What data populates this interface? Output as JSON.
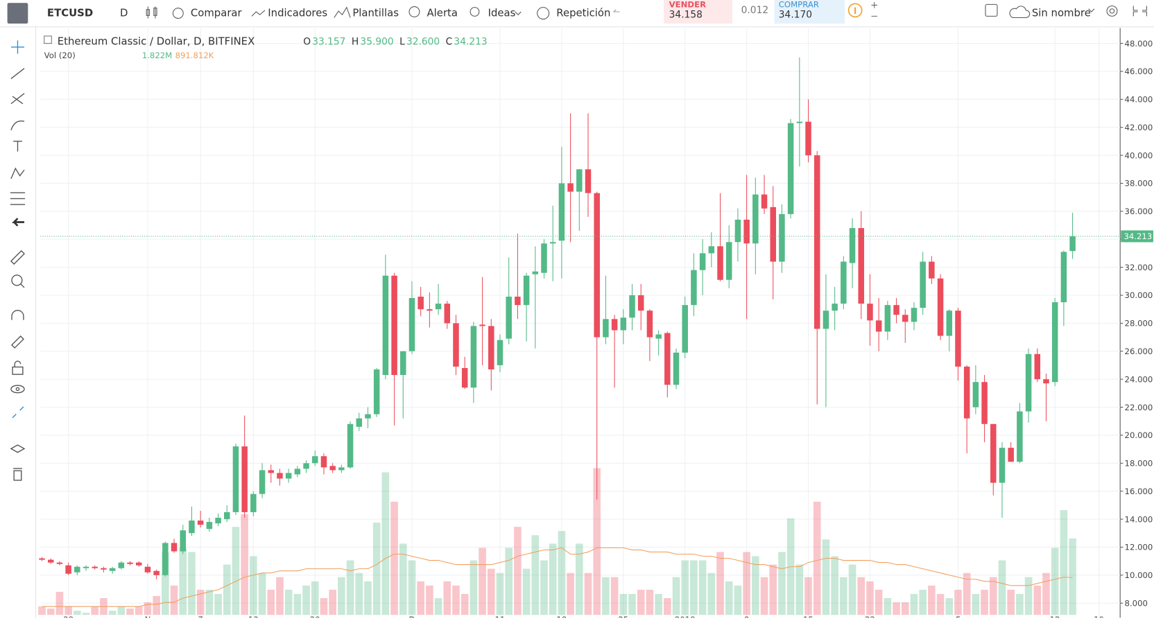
{
  "toolbar": {
    "symbol": "ETCUSD",
    "interval": "D",
    "items": [
      "Comparar",
      "Indicadores",
      "Plantillas",
      "Alerta",
      "Ideas",
      "Repetición"
    ],
    "sell_label": "VENDER",
    "sell_price": "34.158",
    "spread": "0.012",
    "buy_label": "COMPRAR",
    "buy_price": "34.170",
    "layout": "Sin nombre"
  },
  "chart_data": {
    "type": "candlestick",
    "title": "Ethereum Classic / Dollar, D, BITFINEX",
    "ohlc_legend": [
      {
        "key": "O",
        "value": "33.157"
      },
      {
        "key": "H",
        "value": "35.900"
      },
      {
        "key": "L",
        "value": "32.600"
      },
      {
        "key": "C",
        "value": "34.213"
      }
    ],
    "volume_title": "Vol (20)",
    "volume_legend": [
      "1.822M",
      "891.812K"
    ],
    "up_color": "#53b987",
    "down_color": "#eb4d5c",
    "ma_color": "#f0a060",
    "ohlc": [
      [
        11.2,
        11.3,
        11.0,
        11.1
      ],
      [
        11.1,
        11.2,
        10.8,
        10.9
      ],
      [
        10.9,
        11.0,
        10.7,
        10.8
      ],
      [
        10.7,
        10.9,
        10.0,
        10.1
      ],
      [
        10.2,
        10.7,
        10.0,
        10.6
      ],
      [
        10.5,
        10.7,
        10.3,
        10.6
      ],
      [
        10.6,
        10.7,
        10.4,
        10.5
      ],
      [
        10.5,
        10.6,
        10.2,
        10.4
      ],
      [
        10.3,
        10.6,
        10.1,
        10.5
      ],
      [
        10.5,
        11.0,
        10.4,
        10.9
      ],
      [
        10.9,
        11.0,
        10.7,
        10.8
      ],
      [
        10.9,
        11.0,
        10.6,
        10.7
      ],
      [
        10.6,
        10.8,
        10.1,
        10.2
      ],
      [
        10.3,
        10.4,
        9.7,
        10.0
      ],
      [
        10.0,
        12.4,
        9.9,
        12.3
      ],
      [
        12.3,
        12.6,
        11.6,
        11.7
      ],
      [
        11.7,
        13.6,
        11.5,
        13.2
      ],
      [
        13.0,
        14.9,
        12.8,
        13.9
      ],
      [
        13.9,
        14.6,
        13.4,
        13.6
      ],
      [
        13.3,
        14.1,
        13.1,
        13.8
      ],
      [
        13.7,
        14.4,
        13.5,
        14.1
      ],
      [
        14.0,
        15.0,
        13.8,
        14.5
      ],
      [
        14.5,
        19.4,
        14.3,
        19.2
      ],
      [
        19.2,
        21.4,
        14.1,
        14.5
      ],
      [
        14.5,
        16.0,
        14.2,
        15.8
      ],
      [
        15.8,
        18.0,
        15.5,
        17.5
      ],
      [
        17.5,
        17.9,
        16.6,
        17.3
      ],
      [
        17.3,
        17.6,
        16.4,
        16.9
      ],
      [
        16.9,
        17.6,
        16.6,
        17.3
      ],
      [
        17.2,
        17.8,
        17.0,
        17.6
      ],
      [
        17.6,
        18.2,
        17.3,
        18.0
      ],
      [
        18.0,
        18.9,
        17.8,
        18.5
      ],
      [
        18.5,
        18.7,
        17.2,
        17.7
      ],
      [
        17.8,
        18.0,
        17.3,
        17.5
      ],
      [
        17.5,
        17.9,
        17.3,
        17.7
      ],
      [
        17.7,
        21.0,
        17.6,
        20.8
      ],
      [
        20.6,
        21.6,
        20.3,
        21.2
      ],
      [
        21.2,
        22.0,
        20.5,
        21.5
      ],
      [
        21.5,
        24.8,
        21.3,
        24.7
      ],
      [
        24.3,
        32.9,
        24.0,
        31.4
      ],
      [
        31.4,
        31.6,
        20.7,
        24.3
      ],
      [
        24.3,
        26.0,
        21.2,
        26.0
      ],
      [
        26.0,
        31.0,
        25.8,
        29.8
      ],
      [
        29.9,
        30.6,
        28.5,
        29.0
      ],
      [
        29.0,
        30.2,
        27.7,
        28.9
      ],
      [
        29.0,
        30.8,
        28.6,
        29.4
      ],
      [
        29.4,
        29.6,
        27.6,
        28.0
      ],
      [
        28.0,
        28.6,
        24.3,
        24.9
      ],
      [
        24.8,
        25.6,
        23.3,
        23.4
      ],
      [
        23.4,
        28.1,
        22.3,
        27.8
      ],
      [
        27.9,
        31.3,
        25.0,
        27.8
      ],
      [
        27.8,
        28.3,
        23.2,
        24.7
      ],
      [
        25.0,
        27.2,
        24.5,
        26.8
      ],
      [
        26.9,
        32.7,
        26.5,
        29.9
      ],
      [
        29.9,
        34.4,
        28.3,
        29.3
      ],
      [
        29.3,
        31.6,
        26.7,
        31.4
      ],
      [
        31.5,
        33.5,
        26.2,
        31.7
      ],
      [
        31.6,
        34.0,
        31.2,
        33.7
      ],
      [
        33.7,
        36.4,
        31.0,
        33.8
      ],
      [
        33.9,
        40.6,
        31.2,
        38.0
      ],
      [
        38.0,
        43.0,
        33.8,
        37.4
      ],
      [
        37.4,
        39.0,
        34.6,
        39.0
      ],
      [
        39.0,
        43.0,
        35.6,
        37.3
      ],
      [
        37.3,
        37.4,
        15.4,
        27.0
      ],
      [
        27.0,
        31.4,
        26.5,
        28.3
      ],
      [
        28.3,
        28.6,
        23.4,
        27.5
      ],
      [
        27.5,
        29.0,
        26.5,
        28.4
      ],
      [
        28.4,
        30.8,
        27.5,
        30.0
      ],
      [
        30.0,
        30.8,
        27.5,
        28.9
      ],
      [
        28.9,
        29.0,
        25.3,
        27.0
      ],
      [
        26.9,
        27.5,
        25.7,
        27.2
      ],
      [
        27.3,
        27.4,
        22.7,
        23.6
      ],
      [
        23.6,
        26.2,
        23.3,
        25.9
      ],
      [
        25.9,
        29.9,
        25.5,
        29.3
      ],
      [
        29.3,
        33.0,
        28.5,
        31.8
      ],
      [
        31.8,
        34.0,
        30.0,
        33.0
      ],
      [
        33.0,
        34.5,
        32.0,
        33.5
      ],
      [
        33.5,
        37.3,
        31.0,
        31.1
      ],
      [
        31.1,
        35.0,
        30.5,
        33.8
      ],
      [
        33.8,
        36.2,
        32.4,
        35.4
      ],
      [
        35.4,
        38.6,
        28.3,
        33.7
      ],
      [
        33.7,
        38.4,
        31.5,
        37.2
      ],
      [
        37.2,
        38.6,
        35.8,
        36.2
      ],
      [
        36.3,
        37.8,
        29.7,
        32.4
      ],
      [
        32.4,
        36.5,
        31.6,
        35.8
      ],
      [
        35.8,
        42.6,
        35.5,
        42.3
      ],
      [
        42.3,
        47.0,
        39.2,
        42.4
      ],
      [
        42.4,
        44.0,
        39.5,
        40.0
      ],
      [
        40.0,
        40.3,
        22.2,
        27.6
      ],
      [
        27.6,
        31.5,
        22.0,
        28.9
      ],
      [
        28.9,
        30.6,
        27.5,
        29.4
      ],
      [
        29.4,
        32.8,
        29.0,
        32.4
      ],
      [
        32.3,
        35.5,
        30.5,
        34.8
      ],
      [
        34.8,
        36.0,
        28.3,
        29.4
      ],
      [
        29.4,
        31.5,
        26.4,
        28.2
      ],
      [
        28.2,
        29.8,
        26.0,
        27.4
      ],
      [
        27.4,
        29.6,
        26.8,
        29.3
      ],
      [
        29.3,
        29.8,
        28.0,
        28.6
      ],
      [
        28.6,
        29.0,
        26.6,
        28.1
      ],
      [
        28.1,
        29.5,
        27.5,
        29.1
      ],
      [
        29.1,
        33.1,
        28.6,
        32.4
      ],
      [
        32.4,
        32.8,
        30.8,
        31.2
      ],
      [
        31.2,
        31.5,
        26.8,
        27.1
      ],
      [
        27.1,
        29.0,
        26.0,
        28.9
      ],
      [
        28.9,
        29.1,
        23.9,
        24.9
      ],
      [
        24.9,
        25.0,
        18.7,
        21.2
      ],
      [
        22.0,
        25.0,
        21.5,
        23.8
      ],
      [
        23.8,
        24.3,
        19.5,
        20.8
      ],
      [
        20.8,
        20.8,
        15.7,
        16.6
      ],
      [
        16.6,
        19.5,
        14.1,
        19.1
      ],
      [
        19.1,
        19.5,
        18.1,
        18.1
      ],
      [
        18.1,
        22.3,
        18.0,
        21.7
      ],
      [
        21.7,
        26.2,
        20.9,
        25.8
      ],
      [
        25.8,
        26.2,
        23.8,
        24.0
      ],
      [
        24.0,
        24.4,
        21.0,
        23.7
      ],
      [
        23.8,
        29.8,
        23.5,
        29.5
      ],
      [
        29.5,
        33.2,
        27.8,
        33.1
      ],
      [
        33.157,
        35.9,
        32.6,
        34.213
      ]
    ],
    "volume": [
      0.2,
      0.15,
      0.55,
      0.2,
      0.1,
      0.05,
      0.2,
      0.4,
      0.1,
      0.2,
      0.15,
      0.2,
      0.3,
      0.45,
      1.5,
      0.7,
      1.6,
      1.5,
      0.6,
      0.6,
      0.5,
      1.2,
      2.1,
      2.4,
      1.4,
      1.0,
      0.6,
      0.9,
      0.6,
      0.5,
      0.7,
      0.8,
      0.4,
      0.6,
      0.9,
      1.3,
      1.0,
      0.8,
      2.2,
      3.4,
      2.7,
      1.7,
      1.3,
      0.8,
      0.7,
      0.4,
      0.8,
      0.7,
      0.5,
      1.3,
      1.6,
      1.1,
      1.0,
      1.6,
      2.1,
      1.1,
      1.9,
      1.3,
      1.7,
      2.0,
      1.0,
      1.7,
      1.0,
      3.5,
      0.9,
      0.9,
      0.5,
      0.5,
      0.6,
      0.6,
      0.5,
      0.4,
      0.9,
      1.3,
      1.3,
      1.3,
      1.0,
      1.5,
      0.8,
      0.7,
      1.5,
      1.4,
      0.9,
      1.2,
      1.5,
      2.3,
      1.2,
      0.9,
      2.7,
      1.8,
      1.4,
      0.9,
      1.2,
      0.9,
      0.8,
      0.6,
      0.4,
      0.3,
      0.3,
      0.5,
      0.6,
      0.7,
      0.5,
      0.4,
      0.6,
      1.0,
      0.5,
      0.6,
      0.9,
      1.3,
      0.6,
      0.5,
      0.9,
      0.7,
      1.0,
      1.6,
      2.5,
      1.822
    ],
    "volume_ma": [
      0.2,
      0.2,
      0.2,
      0.2,
      0.2,
      0.2,
      0.2,
      0.2,
      0.2,
      0.2,
      0.2,
      0.2,
      0.25,
      0.25,
      0.3,
      0.3,
      0.4,
      0.45,
      0.5,
      0.55,
      0.6,
      0.7,
      0.8,
      0.9,
      0.95,
      1.0,
      1.0,
      1.05,
      1.05,
      1.05,
      1.1,
      1.1,
      1.1,
      1.1,
      1.1,
      1.05,
      1.1,
      1.1,
      1.2,
      1.35,
      1.45,
      1.45,
      1.4,
      1.35,
      1.3,
      1.3,
      1.25,
      1.2,
      1.2,
      1.2,
      1.2,
      1.2,
      1.25,
      1.3,
      1.4,
      1.45,
      1.5,
      1.55,
      1.55,
      1.6,
      1.45,
      1.45,
      1.5,
      1.6,
      1.6,
      1.6,
      1.6,
      1.55,
      1.55,
      1.5,
      1.5,
      1.5,
      1.45,
      1.45,
      1.45,
      1.4,
      1.4,
      1.35,
      1.35,
      1.3,
      1.25,
      1.2,
      1.2,
      1.15,
      1.1,
      1.15,
      1.15,
      1.25,
      1.3,
      1.35,
      1.35,
      1.3,
      1.3,
      1.3,
      1.3,
      1.25,
      1.25,
      1.2,
      1.2,
      1.15,
      1.1,
      1.05,
      1.0,
      0.95,
      0.9,
      0.85,
      0.85,
      0.8,
      0.8,
      0.75,
      0.7,
      0.7,
      0.7,
      0.75,
      0.8,
      0.85,
      0.9,
      0.892
    ],
    "vlim": [
      0,
      14
    ],
    "ylim": [
      7.16,
      49.1
    ],
    "yticks": [
      {
        "value": 8,
        "label": "8.000"
      },
      {
        "value": 10,
        "label": "10.000"
      },
      {
        "value": 12,
        "label": "12.000"
      },
      {
        "value": 14,
        "label": "14.000"
      },
      {
        "value": 16,
        "label": "16.000"
      },
      {
        "value": 18,
        "label": "18.000"
      },
      {
        "value": 20,
        "label": "20.000"
      },
      {
        "value": 22,
        "label": "22.000"
      },
      {
        "value": 24,
        "label": "24.000"
      },
      {
        "value": 26,
        "label": "26.000"
      },
      {
        "value": 28,
        "label": "28.000"
      },
      {
        "value": 30,
        "label": "30.000"
      },
      {
        "value": 32,
        "label": "32.000"
      },
      {
        "value": 34,
        "label": "34.000"
      },
      {
        "value": 36,
        "label": "36.000"
      },
      {
        "value": 38,
        "label": "38.000"
      },
      {
        "value": 40,
        "label": "40.000"
      },
      {
        "value": 42,
        "label": "42.000"
      },
      {
        "value": 44,
        "label": "44.000"
      },
      {
        "value": 46,
        "label": "46.000"
      },
      {
        "value": 48,
        "label": "48.000"
      }
    ],
    "last_price": {
      "value": 34.213,
      "label": "34.213"
    },
    "xlim": [
      -0.17,
      122.4
    ],
    "xticks": [
      {
        "value": 3,
        "label": "28"
      },
      {
        "value": 12,
        "label": "N"
      },
      {
        "value": 18,
        "label": "7"
      },
      {
        "value": 24,
        "label": "13"
      },
      {
        "value": 31,
        "label": "20"
      },
      {
        "value": 42,
        "label": "D"
      },
      {
        "value": 52,
        "label": "11"
      },
      {
        "value": 59,
        "label": "18"
      },
      {
        "value": 66,
        "label": "25"
      },
      {
        "value": 73,
        "label": "2018"
      },
      {
        "value": 80,
        "label": "8"
      },
      {
        "value": 87,
        "label": "15"
      },
      {
        "value": 94,
        "label": "22"
      },
      {
        "value": 104,
        "label": "F"
      },
      {
        "value": 115,
        "label": "12"
      },
      {
        "value": 120,
        "label": "19"
      }
    ],
    "grid": true
  }
}
